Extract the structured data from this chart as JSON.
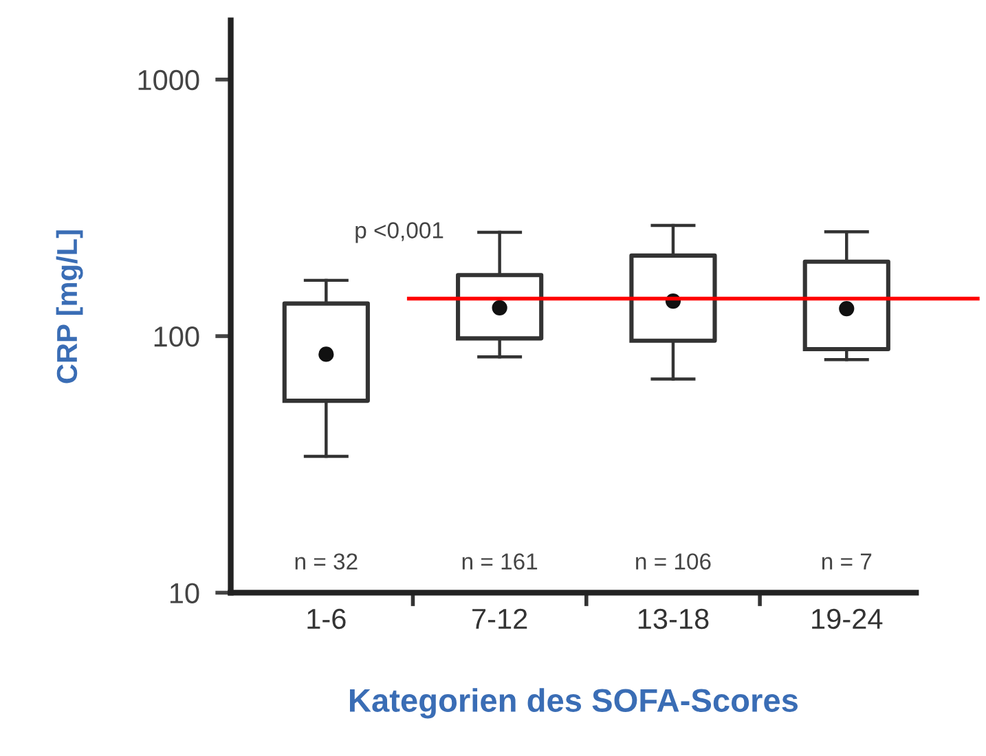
{
  "chart_data": {
    "type": "box",
    "ylabel": "CRP [mg/L]",
    "xlabel": "Kategorien des SOFA-Scores",
    "categories": [
      "1-6",
      "7-12",
      "13-18",
      "19-24"
    ],
    "boxes": [
      {
        "low": 34,
        "q1": 56,
        "median": 85,
        "q3": 134,
        "high": 165
      },
      {
        "low": 83,
        "q1": 98,
        "median": 129,
        "q3": 173,
        "high": 254
      },
      {
        "low": 68,
        "q1": 96,
        "median": 137,
        "q3": 206,
        "high": 270
      },
      {
        "low": 81,
        "q1": 89,
        "median": 128,
        "q3": 195,
        "high": 255
      }
    ],
    "log": true,
    "ylim": [
      10,
      1700
    ],
    "yticks": [
      10,
      100,
      1000
    ],
    "ref_lines": [
      {
        "axis": "y",
        "value": 140,
        "color": "#ff0000"
      }
    ],
    "annotations": [
      {
        "text": "p <0,001",
        "x": "7-12",
        "y": 254
      },
      "n = 32",
      "n = 161",
      "n = 106",
      "n = 7"
    ],
    "grid": false,
    "legend": false
  }
}
